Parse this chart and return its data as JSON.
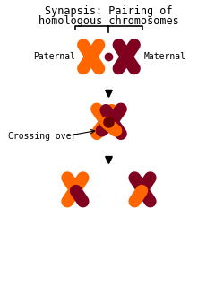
{
  "title_line1": "Synapsis: Pairing of",
  "title_line2": "homologous chromosomes",
  "label_paternal": "Paternal",
  "label_maternal": "Maternal",
  "label_crossing": "Crossing over",
  "color_orange": "#FF6600",
  "color_dark_red": "#800020",
  "background": "#FFFFFF",
  "title_fontsize": 8.5,
  "label_fontsize": 7.0
}
